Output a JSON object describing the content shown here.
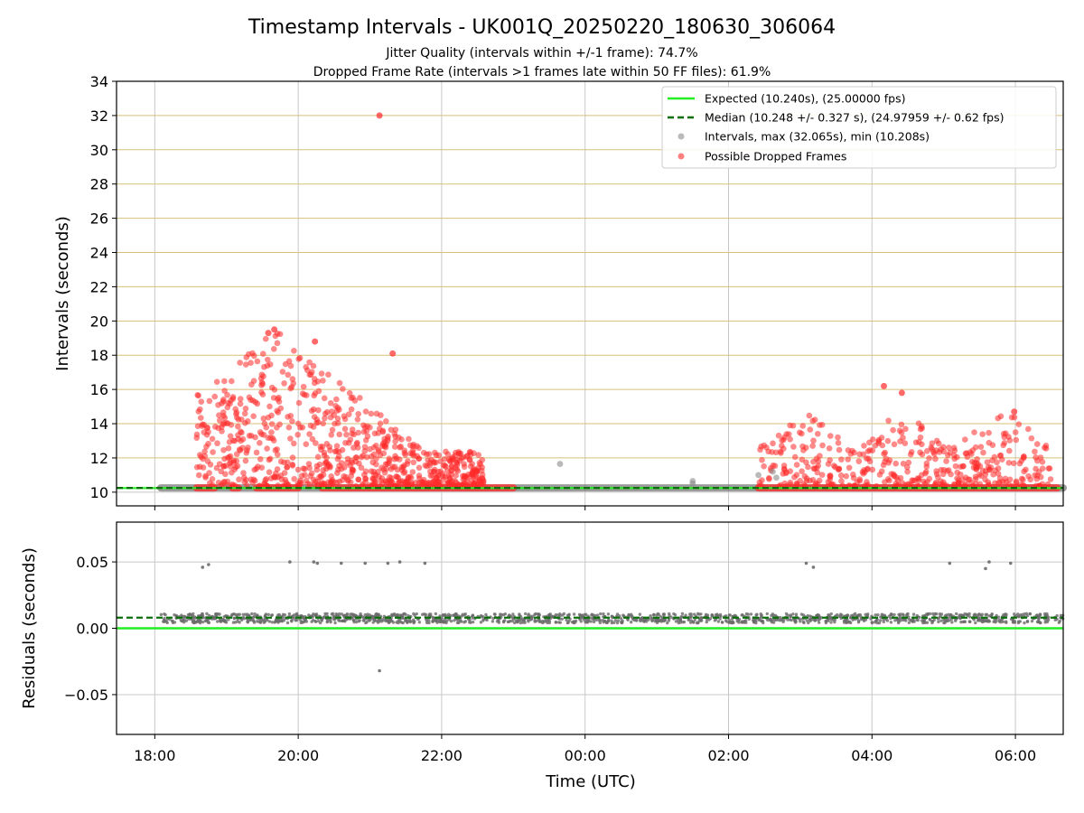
{
  "title": "Timestamp Intervals - UK001Q_20250220_180630_306064",
  "subtitle_line1": "Jitter Quality (intervals within +/-1 frame): 74.7%",
  "subtitle_line2": "Dropped Frame Rate (intervals >1 frames late within 50 FF files): 61.9%",
  "colors": {
    "expected": "#22ee22",
    "median": "#0a6e0a",
    "intervals": "#8c8c8c",
    "dropped": "#ff2a2a",
    "hgrid_top": "#d8c07a",
    "grid": "#c8c8c8"
  },
  "legend": {
    "expected": "Expected (10.240s), (25.00000 fps)",
    "median": "Median (10.248 +/- 0.327 s), (24.97959 +/- 0.62 fps)",
    "intervals": "Intervals, max (32.065s), min (10.208s)",
    "dropped": "Possible Dropped Frames"
  },
  "x_tick_labels": [
    "18:00",
    "20:00",
    "22:00",
    "00:00",
    "02:00",
    "04:00",
    "06:00"
  ],
  "chart_data": [
    {
      "type": "scatter",
      "name": "intervals",
      "ylabel": "Intervals (seconds)",
      "xlim": [
        "17:28",
        "06:40"
      ],
      "ylim": [
        9.2,
        34
      ],
      "yticks": [
        10,
        12,
        14,
        16,
        18,
        20,
        22,
        24,
        26,
        28,
        30,
        32,
        34
      ],
      "xticks": [
        "18:00",
        "20:00",
        "22:00",
        "00:00",
        "02:00",
        "04:00",
        "06:00"
      ],
      "grid": true,
      "legend_position": "top-right",
      "expected_value": 10.24,
      "median_value": 10.248,
      "max_interval": 32.065,
      "min_interval": 10.208,
      "dense_baseline_segments": [
        [
          "18:05",
          "06:40"
        ]
      ],
      "dropped_baseline_segments": [
        [
          "18:35",
          "18:50"
        ],
        [
          "19:05",
          "19:10"
        ],
        [
          "19:25",
          "20:00"
        ],
        [
          "20:20",
          "23:00"
        ],
        [
          "02:25",
          "06:35"
        ]
      ],
      "dropped_cluster_ranges": [
        {
          "from": "18:35",
          "to": "22:35",
          "ymax": 19.5
        },
        {
          "from": "02:25",
          "to": "06:30",
          "ymax": 14.7
        }
      ],
      "dropped_notable_points": [
        {
          "x": "21:08",
          "y": 32.0
        },
        {
          "x": "19:40",
          "y": 19.5
        },
        {
          "x": "19:35",
          "y": 19.3
        },
        {
          "x": "20:14",
          "y": 18.8
        },
        {
          "x": "21:19",
          "y": 18.1
        },
        {
          "x": "04:10",
          "y": 16.2
        },
        {
          "x": "04:25",
          "y": 15.8
        },
        {
          "x": "05:59",
          "y": 14.7
        }
      ],
      "gray_points": [
        {
          "x": "23:39",
          "y": 11.65
        },
        {
          "x": "01:30",
          "y": 10.5
        },
        {
          "x": "01:30",
          "y": 10.65
        },
        {
          "x": "02:25",
          "y": 11.0
        },
        {
          "x": "02:40",
          "y": 10.85
        },
        {
          "x": "02:37",
          "y": 11.2
        }
      ]
    },
    {
      "type": "scatter",
      "name": "residuals",
      "xlabel": "Time (UTC)",
      "ylabel": "Residuals (seconds)",
      "xlim": [
        "17:28",
        "06:40"
      ],
      "ylim": [
        -0.08,
        0.08
      ],
      "ytick_labels": [
        "−0.05",
        "0.00",
        "0.05"
      ],
      "yticks": [
        -0.05,
        0,
        0.05
      ],
      "xticks": [
        "18:00",
        "20:00",
        "22:00",
        "00:00",
        "02:00",
        "04:00",
        "06:00"
      ],
      "grid": true,
      "expected_value": 0.0,
      "median_value": 0.008,
      "band_range": [
        0.004,
        0.011
      ],
      "outliers": [
        {
          "x": "18:40",
          "y": 0.046
        },
        {
          "x": "18:45",
          "y": 0.048
        },
        {
          "x": "19:53",
          "y": 0.05
        },
        {
          "x": "20:13",
          "y": 0.05
        },
        {
          "x": "20:16",
          "y": 0.049
        },
        {
          "x": "20:36",
          "y": 0.049
        },
        {
          "x": "20:56",
          "y": 0.049
        },
        {
          "x": "21:15",
          "y": 0.049
        },
        {
          "x": "21:25",
          "y": 0.05
        },
        {
          "x": "21:46",
          "y": 0.049
        },
        {
          "x": "03:05",
          "y": 0.049
        },
        {
          "x": "03:11",
          "y": 0.046
        },
        {
          "x": "05:05",
          "y": 0.049
        },
        {
          "x": "05:35",
          "y": 0.045
        },
        {
          "x": "05:38",
          "y": 0.05
        },
        {
          "x": "05:56",
          "y": 0.049
        },
        {
          "x": "21:08",
          "y": -0.032
        }
      ]
    }
  ]
}
